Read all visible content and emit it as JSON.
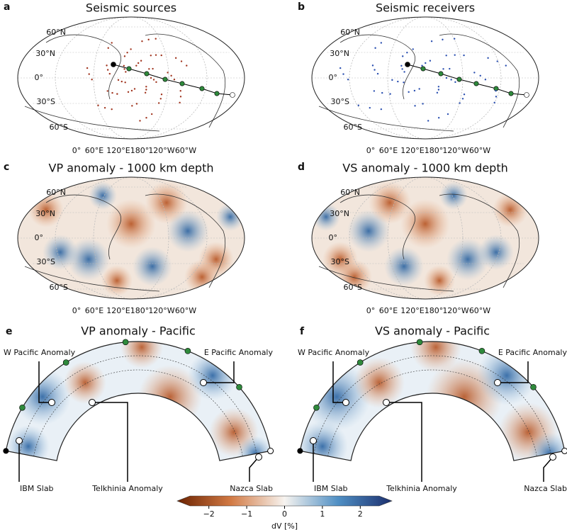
{
  "panels": [
    {
      "letter": "a",
      "title": "Seismic sources",
      "lat_labels": [
        "60°N",
        "30°N",
        "0°",
        "30°S",
        "60°S"
      ],
      "lon_labels": [
        "0°",
        "60°E",
        "120°E",
        "180°",
        "120°W",
        "60°W"
      ]
    },
    {
      "letter": "b",
      "title": "Seismic receivers",
      "lat_labels": [
        "60°N",
        "30°N",
        "0°",
        "30°S",
        "60°S"
      ],
      "lon_labels": [
        "0°",
        "60°E",
        "120°E",
        "180°",
        "120°W",
        "60°W"
      ]
    },
    {
      "letter": "c",
      "title": "VP anomaly - 1000 km depth",
      "lat_labels": [
        "60°N",
        "30°N",
        "0°",
        "30°S",
        "60°S"
      ],
      "lon_labels": [
        "0°",
        "60°E",
        "120°E",
        "180°",
        "120°W",
        "60°W"
      ]
    },
    {
      "letter": "d",
      "title": "VS anomaly - 1000 km depth",
      "lat_labels": [
        "60°N",
        "30°N",
        "0°",
        "30°S",
        "60°S"
      ],
      "lon_labels": [
        "0°",
        "60°E",
        "120°E",
        "180°",
        "120°W",
        "60°W"
      ]
    }
  ],
  "sections": [
    {
      "letter": "e",
      "title": "VP anomaly - Pacific",
      "annotations": [
        "W Pacific Anomaly",
        "E Pacific Anomaly",
        "IBM Slab",
        "Telkhinia Anomaly",
        "Nazca Slab"
      ]
    },
    {
      "letter": "f",
      "title": "VS anomaly - Pacific",
      "annotations": [
        "W Pacific Anomaly",
        "E Pacific Anomaly",
        "IBM Slab",
        "Telkhinia Anomaly",
        "Nazca Slab"
      ]
    }
  ],
  "colorbar": {
    "label": "dV [%]",
    "lim": [
      -2.5,
      2.5
    ],
    "ticks": [
      {
        "value": -2,
        "label": "−2"
      },
      {
        "value": -1,
        "label": "−1"
      },
      0,
      1,
      2
    ]
  }
}
